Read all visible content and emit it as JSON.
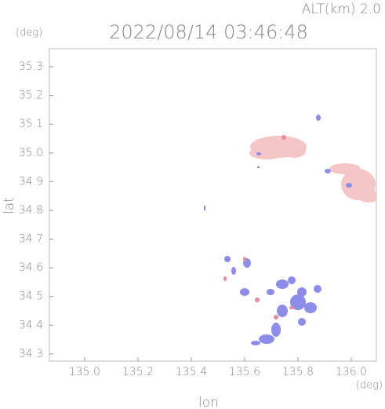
{
  "chart_data": {
    "type": "map",
    "title": "2022/08/14 03:46:48",
    "altitude_label": "ALT(km) 2.0",
    "ylabel": "lat",
    "xlabel": "lon",
    "y_unit": "(deg)",
    "x_unit": "(deg)",
    "xlim": [
      134.868,
      136.094
    ],
    "ylim": [
      34.275,
      35.363
    ],
    "xticks": [
      {
        "value": 135.0,
        "label": "135.0"
      },
      135.2,
      135.4,
      135.6,
      135.8,
      {
        "value": 136.0,
        "label": "136.0"
      }
    ],
    "yticks": [
      34.3,
      34.4,
      34.5,
      34.6,
      34.7,
      34.8,
      34.9,
      {
        "value": 35.0,
        "label": "35.0"
      },
      35.1,
      35.2,
      35.3
    ]
  }
}
